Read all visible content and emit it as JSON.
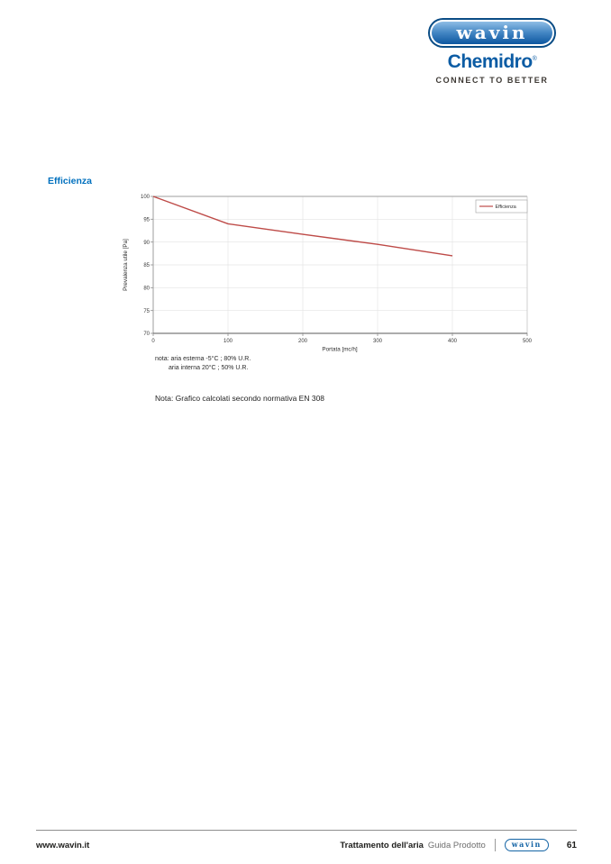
{
  "brand": {
    "logo_text": "wavin",
    "sub_logo": "Chemidro",
    "registered": "®",
    "tagline": "CONNECT TO BETTER"
  },
  "section": {
    "heading": "Efficienza"
  },
  "chart_data": {
    "type": "line",
    "title": "",
    "xlabel": "Portata [mc/h]",
    "ylabel": "Prevalenza utile [Pa]",
    "xlim": [
      0,
      500
    ],
    "ylim": [
      70,
      100
    ],
    "grid": true,
    "legend_position": "top-right",
    "xticks": [
      "0",
      "100",
      "200",
      "300",
      "400",
      "500"
    ],
    "yticks": [
      "70",
      "75",
      "80",
      "85",
      "90",
      "95",
      "100"
    ],
    "legend": {
      "label": "Efficienza",
      "color": "#BE4B48"
    },
    "series": [
      {
        "name": "Efficienza",
        "color": "#BE4B48",
        "x": [
          0,
          100,
          200,
          300,
          400
        ],
        "y": [
          100,
          94,
          91.7,
          89.5,
          87
        ]
      }
    ]
  },
  "notes": {
    "line1": "nota: aria esterna -5°C ; 80% U.R.",
    "line2": "aria interna 20°C ; 50% U.R.",
    "standard": "Nota: Grafico calcolati secondo normativa EN 308"
  },
  "footer": {
    "website": "www.wavin.it",
    "doc_title": "Trattamento dell'aria",
    "doc_subtitle": "Guida Prodotto",
    "logo_text": "wavin",
    "page_number": "61"
  },
  "colors": {
    "heading_blue": "#0070BE",
    "brand_blue": "#0C5CA4",
    "line_red": "#BE4B48",
    "footer_dark": "#1D1D1B"
  }
}
